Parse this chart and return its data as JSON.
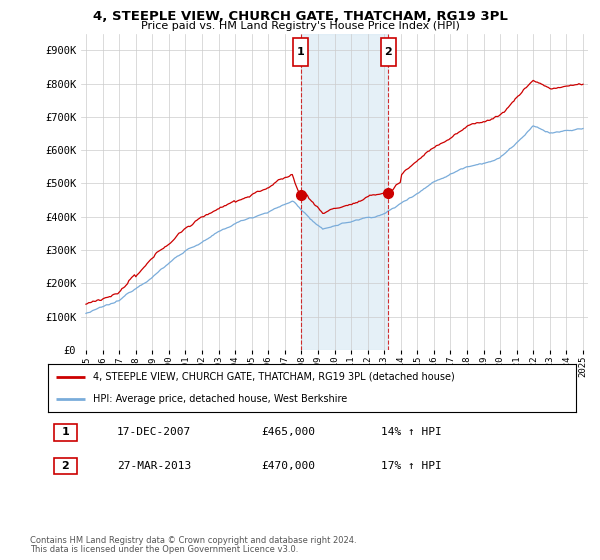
{
  "title": "4, STEEPLE VIEW, CHURCH GATE, THATCHAM, RG19 3PL",
  "subtitle": "Price paid vs. HM Land Registry's House Price Index (HPI)",
  "ylabel_ticks": [
    "£0",
    "£100K",
    "£200K",
    "£300K",
    "£400K",
    "£500K",
    "£600K",
    "£700K",
    "£800K",
    "£900K"
  ],
  "ytick_values": [
    0,
    100000,
    200000,
    300000,
    400000,
    500000,
    600000,
    700000,
    800000,
    900000
  ],
  "ylim": [
    0,
    950000
  ],
  "sale1_year": 2007.96,
  "sale1_price": 465000,
  "sale1_label": "1",
  "sale1_date": "17-DEC-2007",
  "sale1_pct": "14%",
  "sale2_year": 2013.24,
  "sale2_price": 470000,
  "sale2_label": "2",
  "sale2_date": "27-MAR-2013",
  "sale2_pct": "17%",
  "red_line_color": "#cc0000",
  "blue_line_color": "#7aacda",
  "shade_color": "#daeaf5",
  "background_color": "#ffffff",
  "grid_color": "#cccccc",
  "legend_line1": "4, STEEPLE VIEW, CHURCH GATE, THATCHAM, RG19 3PL (detached house)",
  "legend_line2": "HPI: Average price, detached house, West Berkshire",
  "footer1": "Contains HM Land Registry data © Crown copyright and database right 2024.",
  "footer2": "This data is licensed under the Open Government Licence v3.0."
}
